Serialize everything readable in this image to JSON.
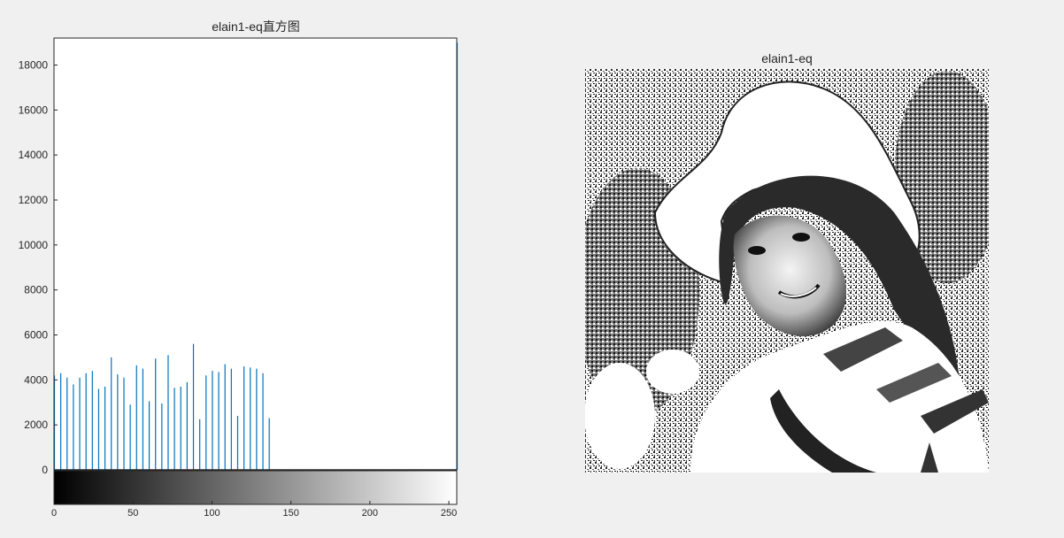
{
  "chart_data": [
    {
      "type": "bar",
      "title": "elain1-eq直方图",
      "xlabel": "",
      "ylabel": "",
      "xlim": [
        0,
        255
      ],
      "ylim": [
        -1600,
        19200
      ],
      "xticks": [
        0,
        50,
        100,
        150,
        200,
        250
      ],
      "yticks": [
        0,
        2000,
        4000,
        6000,
        8000,
        10000,
        12000,
        14000,
        16000,
        18000
      ],
      "bar_color": "#0072BD",
      "colorbar": "grayscale 0-255 below axis",
      "x": [
        0,
        4,
        8,
        12,
        16,
        20,
        24,
        28,
        32,
        36,
        40,
        44,
        48,
        52,
        56,
        60,
        64,
        68,
        72,
        76,
        80,
        84,
        88,
        92,
        96,
        100,
        104,
        108,
        112,
        116,
        120,
        124,
        128,
        132,
        136,
        255
      ],
      "values": [
        4200,
        4300,
        4100,
        3800,
        4100,
        4300,
        4400,
        3600,
        3700,
        5000,
        4250,
        4100,
        2900,
        4650,
        4500,
        3050,
        4950,
        2950,
        5100,
        3650,
        3700,
        3900,
        5600,
        2250,
        4200,
        4400,
        4350,
        4700,
        4500,
        2400,
        4600,
        4550,
        4500,
        4300,
        2300,
        19000
      ]
    },
    {
      "type": "image",
      "title": "elain1-eq"
    }
  ]
}
